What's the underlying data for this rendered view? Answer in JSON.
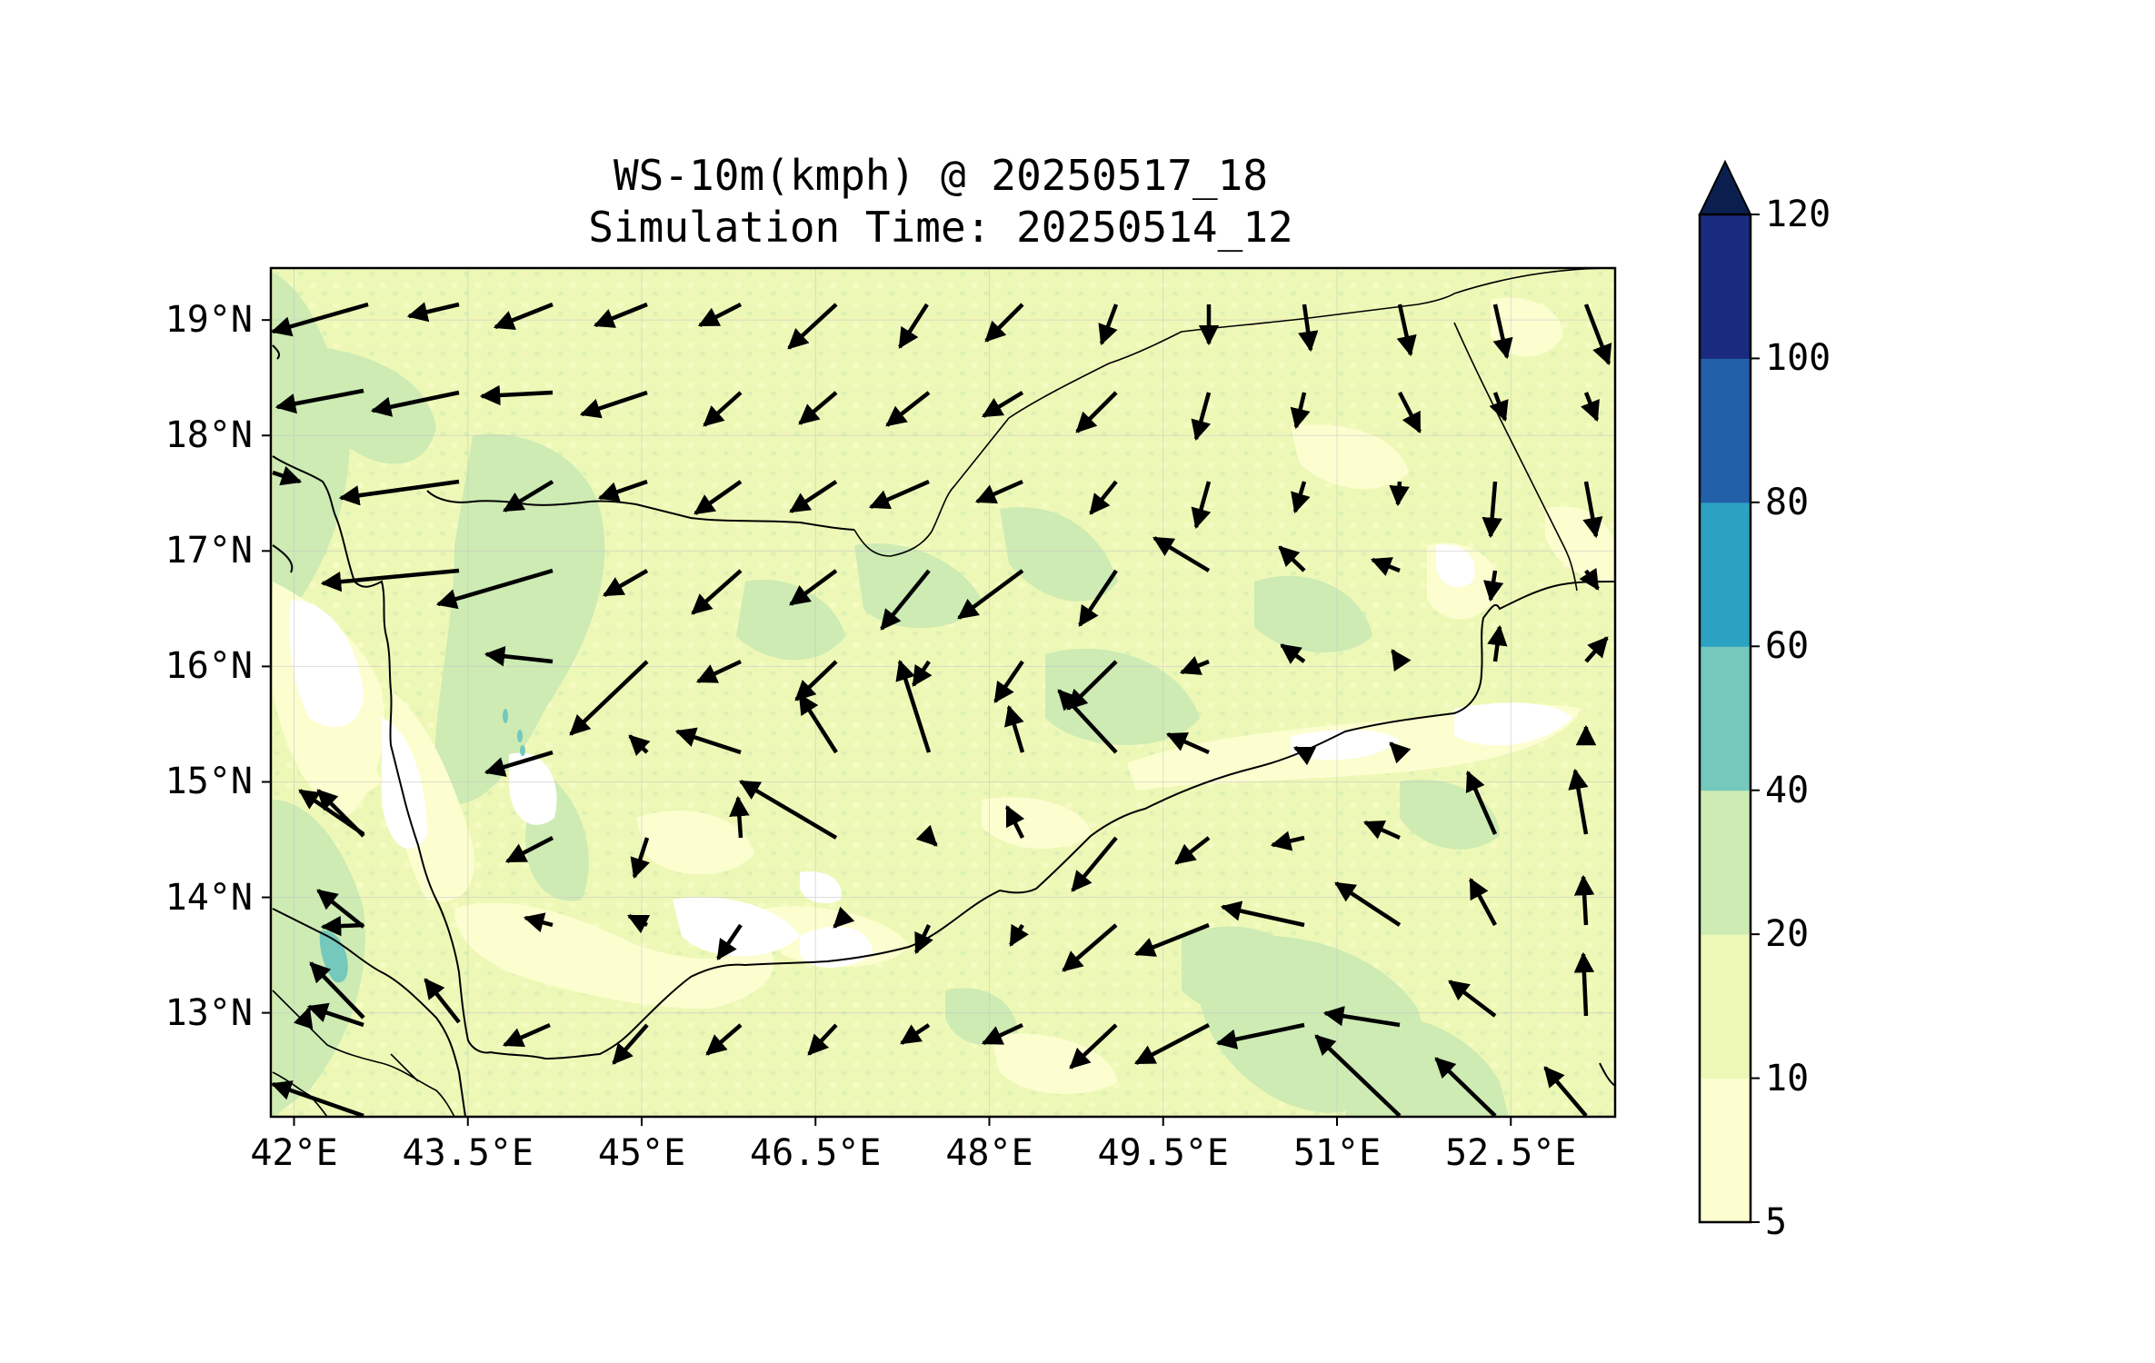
{
  "title": {
    "line1": "WS-10m(kmph) @ 20250517_18",
    "line2": "Simulation Time: 20250514_12"
  },
  "map": {
    "projection": "PlateCarree",
    "extent_lon": [
      41.8,
      53.4
    ],
    "extent_lat": [
      12.1,
      19.45
    ],
    "x_ticks": [
      {
        "value": 42,
        "label": "42°E"
      },
      {
        "value": 43.5,
        "label": "43.5°E"
      },
      {
        "value": 45,
        "label": "45°E"
      },
      {
        "value": 46.5,
        "label": "46.5°E"
      },
      {
        "value": 48,
        "label": "48°E"
      },
      {
        "value": 49.5,
        "label": "49.5°E"
      },
      {
        "value": 51,
        "label": "51°E"
      },
      {
        "value": 52.5,
        "label": "52.5°E"
      }
    ],
    "y_ticks": [
      {
        "value": 13,
        "label": "13°N"
      },
      {
        "value": 14,
        "label": "14°N"
      },
      {
        "value": 15,
        "label": "15°N"
      },
      {
        "value": 16,
        "label": "16°N"
      },
      {
        "value": 17,
        "label": "17°N"
      },
      {
        "value": 18,
        "label": "18°N"
      },
      {
        "value": 19,
        "label": "19°N"
      }
    ],
    "gridlines": true,
    "features": [
      "coastline",
      "country borders",
      "lakes"
    ]
  },
  "colorbar": {
    "levels": [
      5,
      10,
      20,
      40,
      60,
      80,
      100,
      120
    ],
    "labels": [
      "5",
      "10",
      "20",
      "40",
      "60",
      "80",
      "100",
      "120"
    ],
    "colors": [
      "#fcfed0",
      "#eef8b6",
      "#cdebb3",
      "#74c8bc",
      "#2ca2c3",
      "#2260a9",
      "#1a2a7e"
    ],
    "extend_color": "#0b1f4f",
    "extend": "max"
  },
  "chart_data": {
    "type": "heatmap",
    "variable": "10 m wind speed with wind direction vectors",
    "units": "kmph",
    "speed_classes_present": [
      "5-10",
      "10-20",
      "20-40",
      "40-60"
    ],
    "dominant_class": "10-20",
    "wind_vectors_note": "arrows point in flow direction; length proportional to speed"
  }
}
